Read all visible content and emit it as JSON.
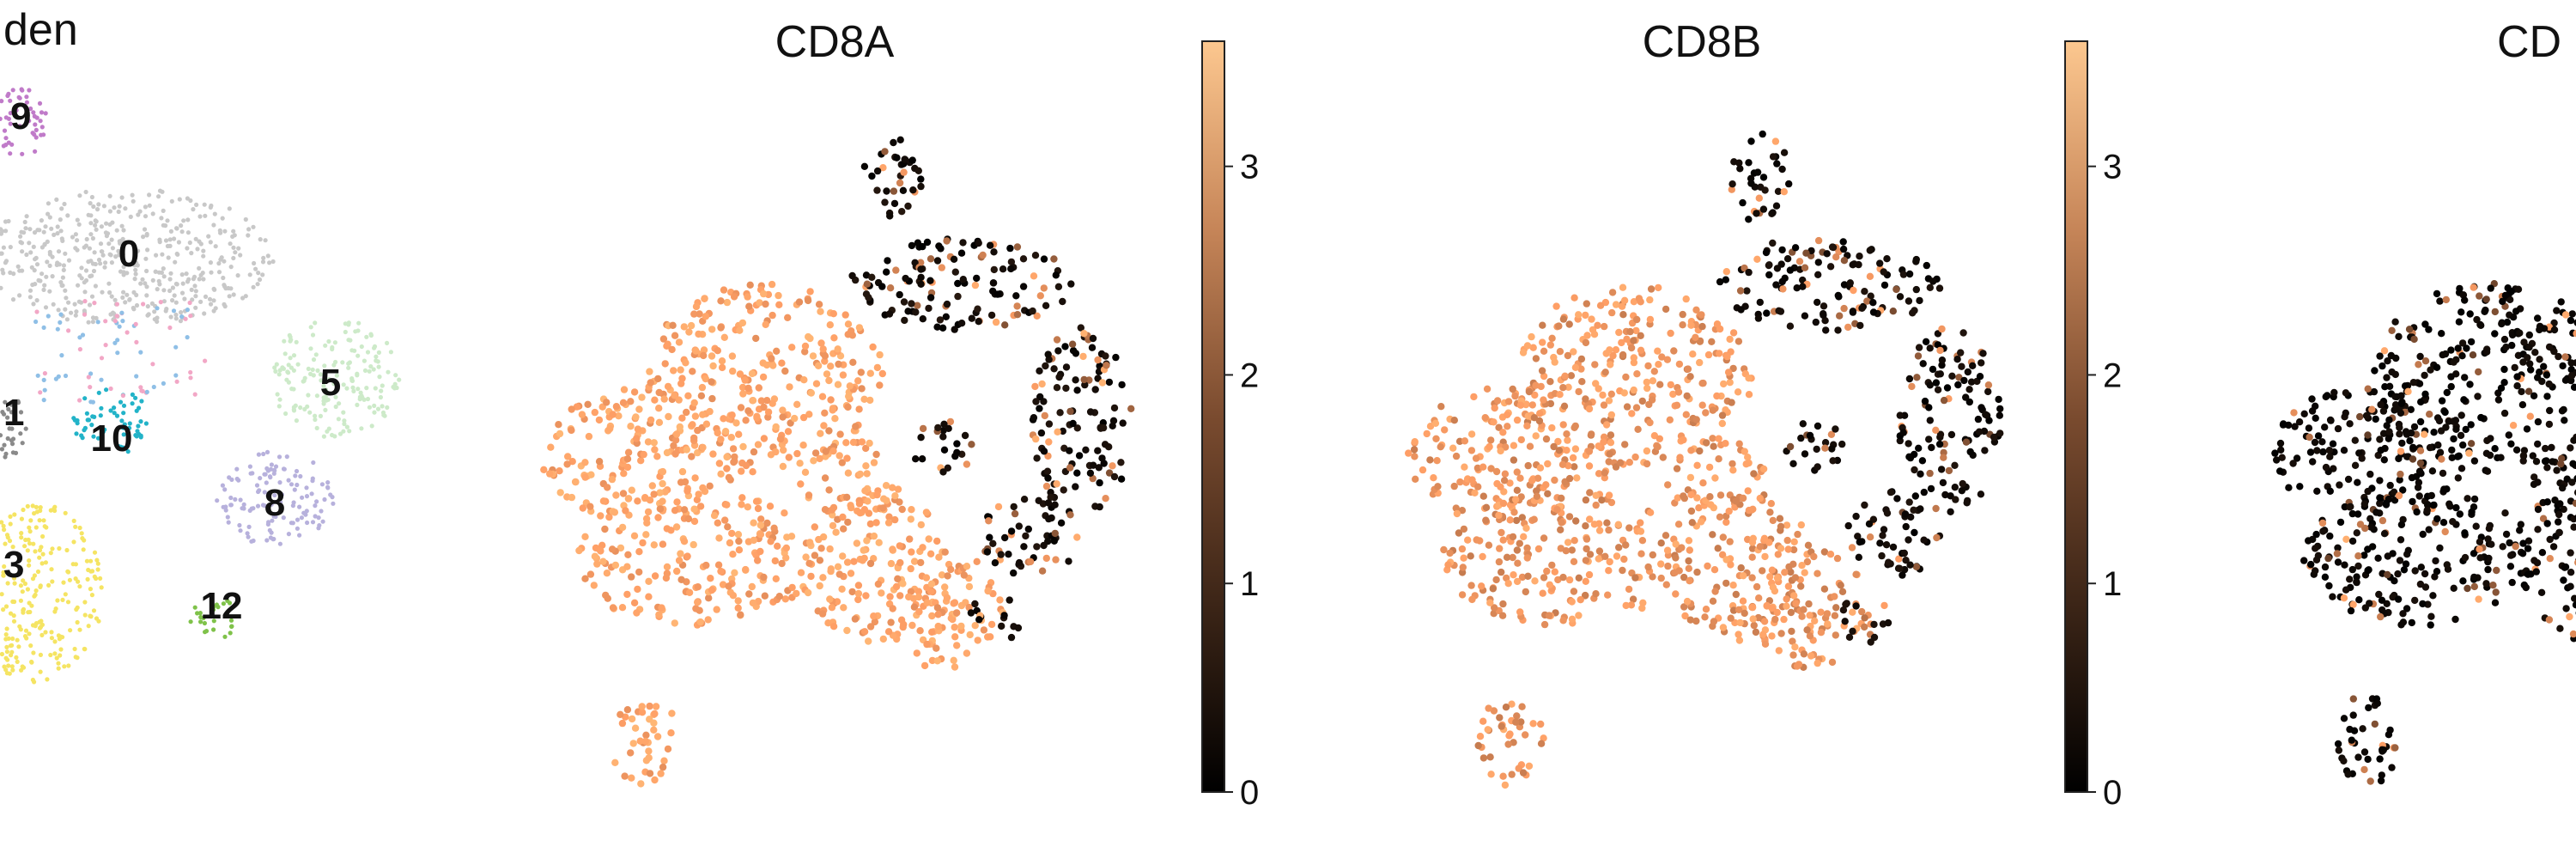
{
  "chart_data": [
    {
      "type": "scatter",
      "title": "den",
      "cluster_labels": [
        "0",
        "1",
        "3",
        "5",
        "8",
        "9",
        "10",
        "12"
      ],
      "cluster_colors": {
        "0": "#c8c8c8",
        "1": "#8a8a8a",
        "3": "#f5e463",
        "5": "#cdeac9",
        "8": "#b7b1dc",
        "9": "#c07bc9",
        "10": "#22b3c8",
        "12": "#7fc24a"
      }
    },
    {
      "type": "scatter",
      "title": "CD8A",
      "colorbar": {
        "ticks": [
          3,
          2,
          1,
          0
        ],
        "range": [
          0,
          3.6
        ],
        "colormap": "copper"
      }
    },
    {
      "type": "scatter",
      "title": "CD8B",
      "colorbar": {
        "ticks": [
          3,
          2,
          1,
          0
        ],
        "range": [
          0,
          3.6
        ],
        "colormap": "copper"
      }
    },
    {
      "type": "scatter",
      "title": "CD"
    }
  ],
  "colors": {
    "copper_low": "#000000",
    "copper_mid": "#7a4a2c",
    "copper_high": "#f2c08f"
  }
}
